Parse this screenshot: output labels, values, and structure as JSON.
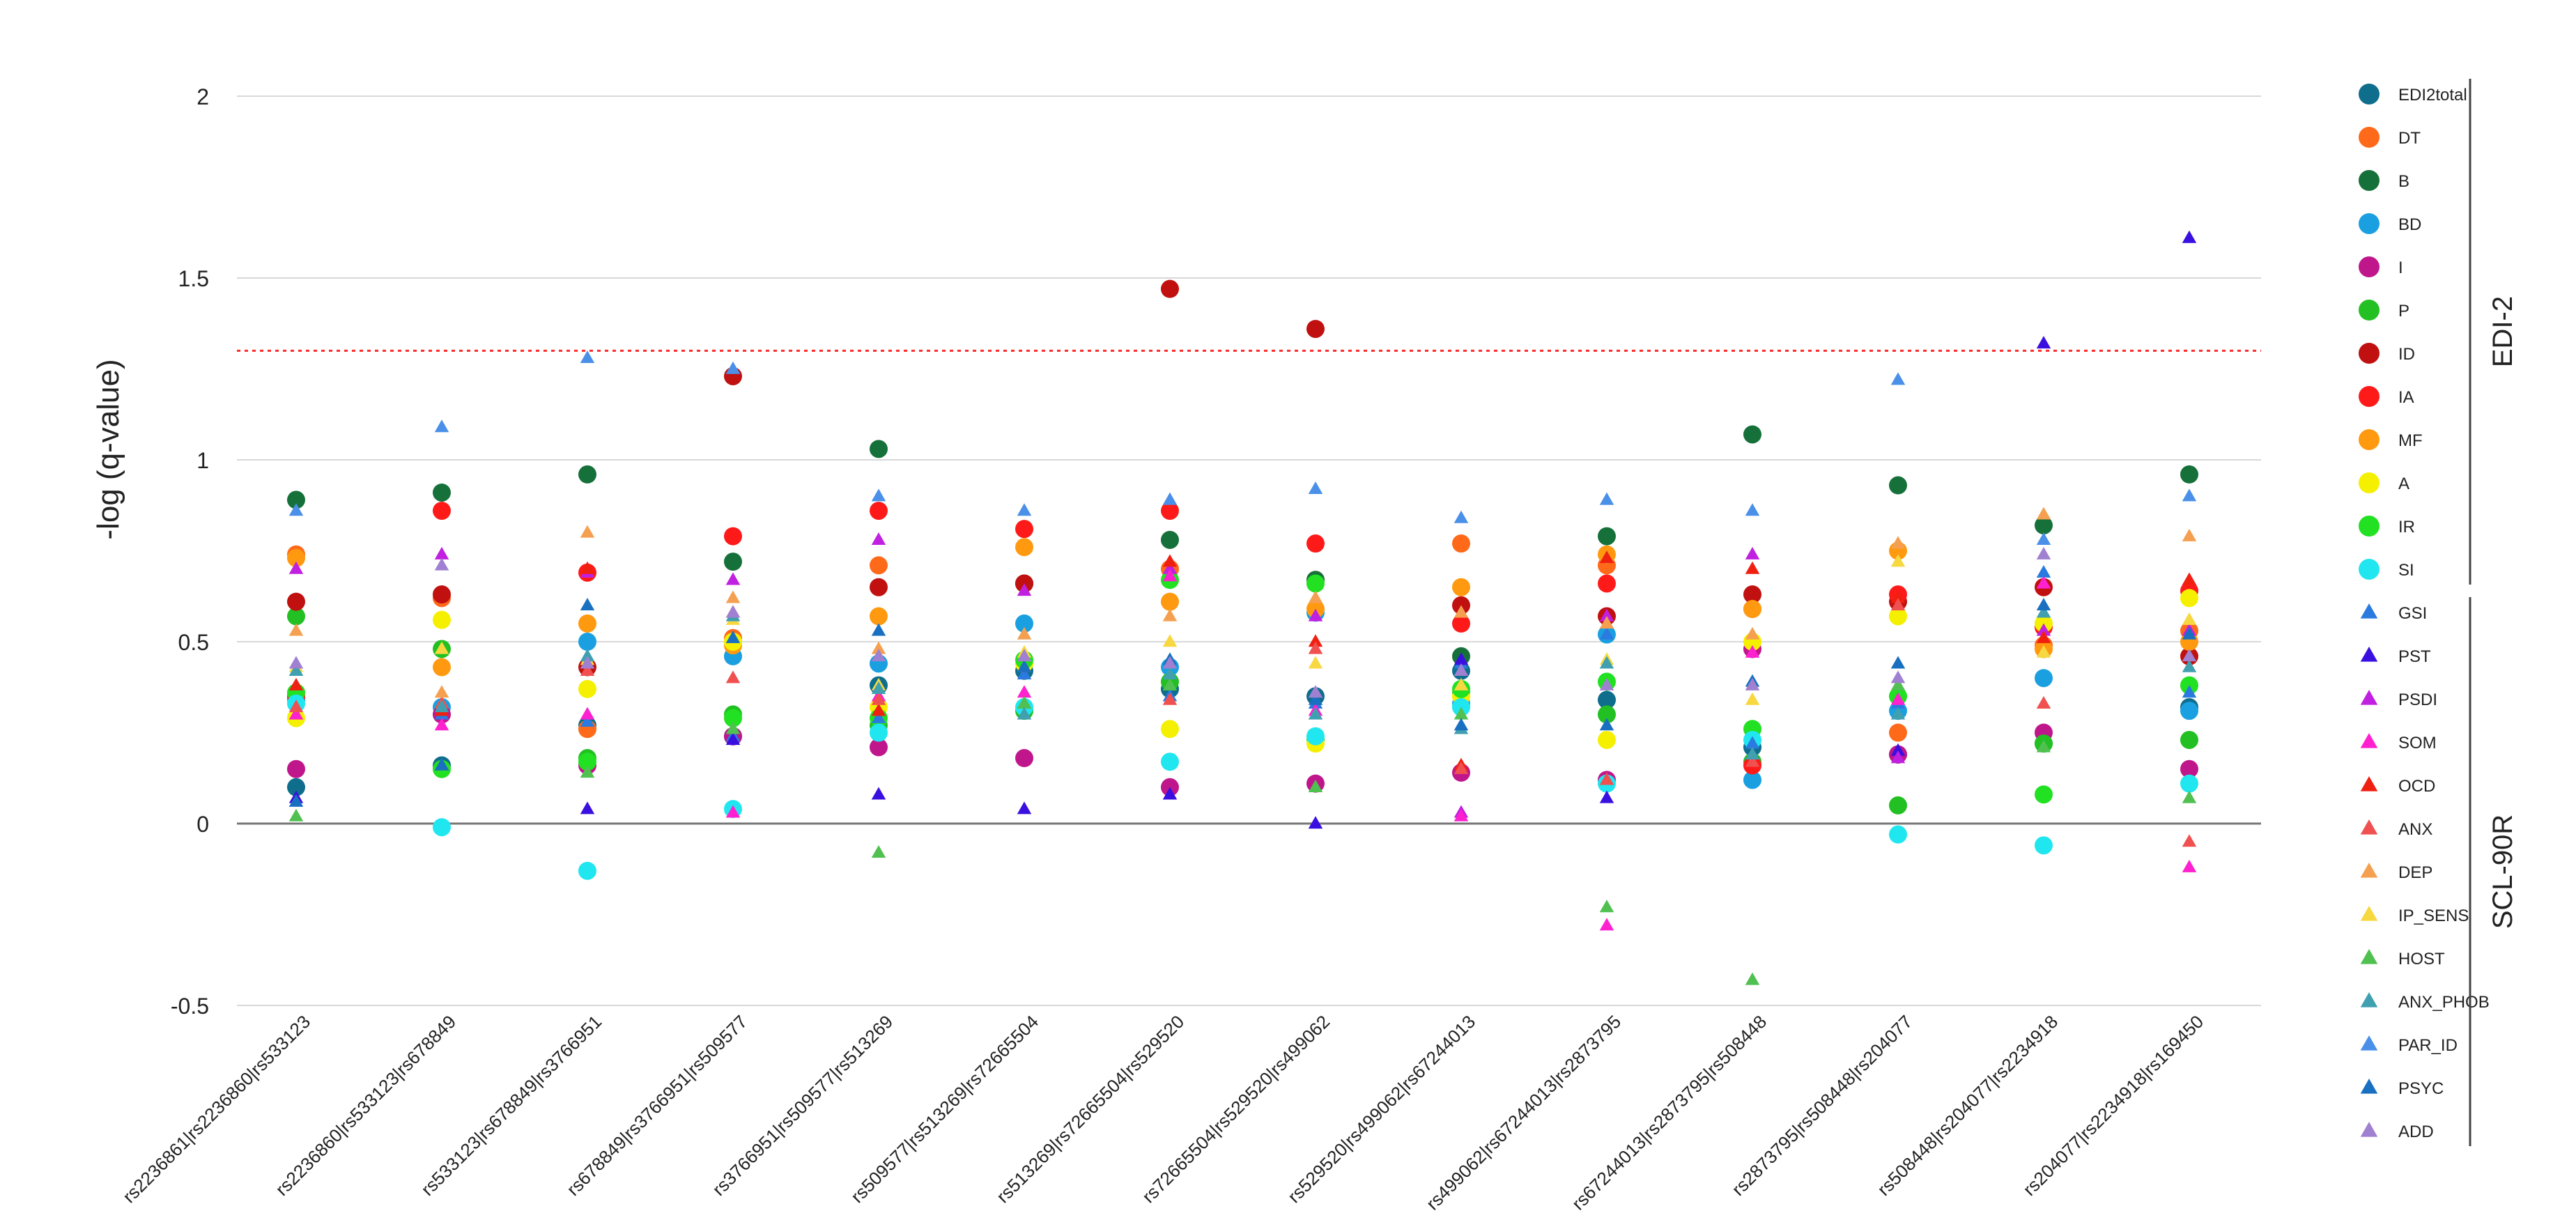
{
  "chart_data": {
    "type": "scatter",
    "ylabel": "-log (q-value)",
    "ylim": [
      -0.5,
      2
    ],
    "yticks": [
      2,
      1.5,
      1,
      0.5,
      0,
      -0.5
    ],
    "ytick_labels": [
      "2",
      "1.5",
      "1",
      "0.5",
      "0",
      "-0.5"
    ],
    "threshold": 1.3,
    "threshold_color": "#ff2a2a",
    "grid": true,
    "categories": [
      "rs2236861|rs2236860|rs533123",
      "rs2236860|rs533123|rs678849",
      "rs533123|rs678849|rs3766951",
      "rs678849|rs3766951|rs509577",
      "rs3766951|rs509577|rs513269",
      "rs509577|rs513269|rs72665504",
      "rs513269|rs72665504|rs529520",
      "rs72665504|rs529520|rs499062",
      "rs529520|rs499062|rs67244013",
      "rs499062|rs67244013|rs2873795",
      "rs67244013|rs2873795|rs508448",
      "rs2873795|rs508448|rs204077",
      "rs508448|rs204077|rs2234918",
      "rs204077|rs2234918|rs169450"
    ],
    "legend_groups": [
      {
        "label": "EDI-2",
        "series": [
          "EDI2total",
          "DT",
          "B",
          "BD",
          "I",
          "P",
          "ID",
          "IA",
          "MF",
          "A",
          "IR",
          "SI"
        ]
      },
      {
        "label": "SCL-90R",
        "series": [
          "GSI",
          "PST",
          "PSDI",
          "SOM",
          "OCD",
          "ANX",
          "DEP",
          "IP_SENS",
          "HOST",
          "ANX_PHOB",
          "PAR_ID",
          "PSYC",
          "ADD"
        ]
      }
    ],
    "series": [
      {
        "name": "EDI2total",
        "marker": "circle",
        "color": "#0e6e8c",
        "values": [
          0.1,
          0.16,
          0.27,
          0.24,
          0.38,
          0.42,
          0.37,
          0.35,
          0.42,
          0.34,
          0.21,
          0.19,
          0.22,
          0.32
        ]
      },
      {
        "name": "DT",
        "marker": "circle",
        "color": "#ff6a1a",
        "values": [
          0.74,
          0.62,
          0.26,
          0.51,
          0.71,
          0.66,
          0.7,
          0.67,
          0.77,
          0.71,
          0.59,
          0.25,
          0.49,
          0.53
        ]
      },
      {
        "name": "B",
        "marker": "circle",
        "color": "#16703a",
        "values": [
          0.89,
          0.91,
          0.96,
          0.72,
          1.03,
          0.66,
          0.78,
          0.67,
          0.46,
          0.79,
          1.07,
          0.93,
          0.82,
          0.96
        ]
      },
      {
        "name": "BD",
        "marker": "circle",
        "color": "#1aa0e0",
        "values": [
          0.34,
          0.32,
          0.5,
          0.46,
          0.44,
          0.55,
          0.43,
          0.58,
          0.33,
          0.52,
          0.12,
          0.31,
          0.4,
          0.31
        ]
      },
      {
        "name": "I",
        "marker": "circle",
        "color": "#c0168c",
        "values": [
          0.15,
          0.3,
          0.16,
          0.24,
          0.21,
          0.18,
          0.1,
          0.11,
          0.14,
          0.12,
          0.48,
          0.19,
          0.25,
          0.15
        ]
      },
      {
        "name": "P",
        "marker": "circle",
        "color": "#22c022",
        "values": [
          0.57,
          0.48,
          0.18,
          0.3,
          0.27,
          0.31,
          0.39,
          0.23,
          0.36,
          0.3,
          0.17,
          0.05,
          0.22,
          0.23
        ]
      },
      {
        "name": "ID",
        "marker": "circle",
        "color": "#c01010",
        "values": [
          0.61,
          0.63,
          0.43,
          1.23,
          0.65,
          0.66,
          1.47,
          1.36,
          0.6,
          0.57,
          0.63,
          0.61,
          0.65,
          0.46
        ]
      },
      {
        "name": "IA",
        "marker": "circle",
        "color": "#ff1a1a",
        "values": [
          0.35,
          0.86,
          0.69,
          0.79,
          0.86,
          0.81,
          0.86,
          0.77,
          0.55,
          0.66,
          0.16,
          0.63,
          0.54,
          0.64
        ]
      },
      {
        "name": "MF",
        "marker": "circle",
        "color": "#ff9a10",
        "values": [
          0.73,
          0.43,
          0.55,
          0.49,
          0.57,
          0.76,
          0.61,
          0.59,
          0.65,
          0.74,
          0.59,
          0.75,
          0.48,
          0.5
        ]
      },
      {
        "name": "A",
        "marker": "circle",
        "color": "#f5f000",
        "values": [
          0.29,
          0.56,
          0.37,
          0.5,
          0.32,
          0.44,
          0.26,
          0.22,
          0.35,
          0.23,
          0.5,
          0.57,
          0.55,
          0.62
        ]
      },
      {
        "name": "IR",
        "marker": "circle",
        "color": "#22e022",
        "values": [
          0.36,
          0.15,
          0.17,
          0.29,
          0.29,
          0.45,
          0.67,
          0.66,
          0.37,
          0.39,
          0.26,
          0.35,
          0.08,
          0.38
        ]
      },
      {
        "name": "SI",
        "marker": "circle",
        "color": "#20e6f0",
        "values": [
          0.33,
          -0.01,
          -0.13,
          0.04,
          0.25,
          0.32,
          0.17,
          0.24,
          0.32,
          0.11,
          0.23,
          -0.03,
          -0.06,
          0.11
        ]
      },
      {
        "name": "GSI",
        "marker": "triangle",
        "color": "#2a7ae0",
        "values": [
          0.42,
          0.3,
          0.28,
          0.24,
          0.29,
          0.41,
          0.35,
          0.33,
          0.44,
          0.52,
          0.22,
          0.33,
          0.69,
          0.36
        ]
      },
      {
        "name": "PST",
        "marker": "triangle",
        "color": "#3a10e0",
        "values": [
          0.07,
          0.16,
          0.04,
          0.23,
          0.08,
          0.04,
          0.08,
          0.0,
          0.45,
          0.07,
          0.19,
          0.2,
          1.32,
          1.61
        ]
      },
      {
        "name": "PSDI",
        "marker": "triangle",
        "color": "#c020e0",
        "values": [
          0.7,
          0.74,
          0.69,
          0.67,
          0.78,
          0.64,
          0.7,
          0.57,
          0.03,
          0.57,
          0.74,
          0.18,
          0.53,
          0.53
        ]
      },
      {
        "name": "SOM",
        "marker": "triangle",
        "color": "#ff20d0",
        "values": [
          0.3,
          0.27,
          0.3,
          0.03,
          0.35,
          0.36,
          0.68,
          0.31,
          0.02,
          -0.28,
          0.47,
          0.34,
          0.66,
          -0.12
        ]
      },
      {
        "name": "OCD",
        "marker": "triangle",
        "color": "#f02010",
        "values": [
          0.38,
          0.31,
          0.7,
          0.58,
          0.31,
          0.33,
          0.72,
          0.5,
          0.16,
          0.73,
          0.7,
          0.62,
          0.51,
          0.67
        ]
      },
      {
        "name": "ANX",
        "marker": "triangle",
        "color": "#f05050",
        "values": [
          0.32,
          0.33,
          0.42,
          0.4,
          0.34,
          0.43,
          0.34,
          0.48,
          0.15,
          0.12,
          0.17,
          0.6,
          0.33,
          -0.05
        ]
      },
      {
        "name": "DEP",
        "marker": "triangle",
        "color": "#f5a050",
        "values": [
          0.53,
          0.36,
          0.8,
          0.62,
          0.48,
          0.52,
          0.57,
          0.62,
          0.58,
          0.55,
          0.52,
          0.77,
          0.85,
          0.79
        ]
      },
      {
        "name": "IP_SENS",
        "marker": "triangle",
        "color": "#f8d840",
        "values": [
          0.43,
          0.48,
          0.45,
          0.56,
          0.38,
          0.47,
          0.5,
          0.44,
          0.38,
          0.45,
          0.34,
          0.72,
          0.47,
          0.56
        ]
      },
      {
        "name": "HOST",
        "marker": "triangle",
        "color": "#50c050",
        "values": [
          0.02,
          0.16,
          0.14,
          0.26,
          -0.08,
          0.33,
          0.38,
          0.1,
          0.3,
          -0.23,
          -0.43,
          0.38,
          0.21,
          0.07
        ]
      },
      {
        "name": "ANX_PHOB",
        "marker": "triangle",
        "color": "#40a0b0",
        "values": [
          0.42,
          0.32,
          0.46,
          0.57,
          0.37,
          0.3,
          0.41,
          0.3,
          0.26,
          0.44,
          0.19,
          0.3,
          0.58,
          0.43
        ]
      },
      {
        "name": "PAR_ID",
        "marker": "triangle",
        "color": "#4a90e8",
        "values": [
          0.86,
          1.09,
          1.28,
          1.25,
          0.9,
          0.86,
          0.89,
          0.92,
          0.84,
          0.89,
          0.86,
          1.22,
          0.78,
          0.9
        ]
      },
      {
        "name": "PSYC",
        "marker": "triangle",
        "color": "#1a70c0",
        "values": [
          0.06,
          0.16,
          0.6,
          0.51,
          0.53,
          0.43,
          0.45,
          0.34,
          0.27,
          0.27,
          0.39,
          0.44,
          0.6,
          0.52
        ]
      },
      {
        "name": "ADD",
        "marker": "triangle",
        "color": "#a080d0",
        "values": [
          0.44,
          0.71,
          0.44,
          0.58,
          0.46,
          0.46,
          0.44,
          0.36,
          0.42,
          0.38,
          0.38,
          0.4,
          0.74,
          0.46
        ]
      }
    ]
  }
}
